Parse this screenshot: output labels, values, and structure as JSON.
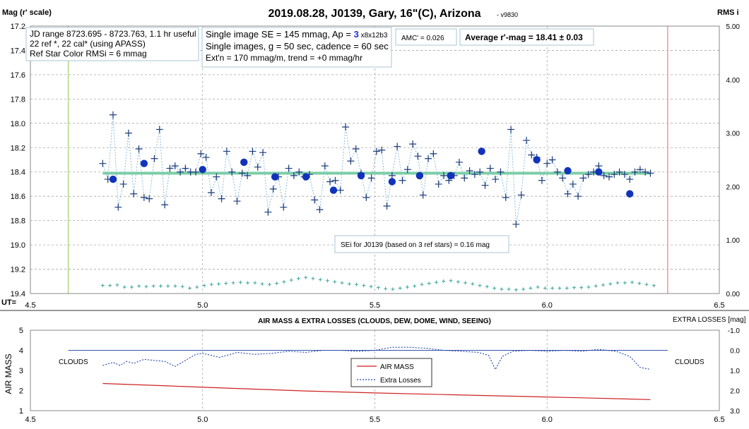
{
  "chart_data": [
    {
      "type": "scatter",
      "title": "2019.08.28, J0139, Gary, 16\"(C), Arizona",
      "version": "- v9830",
      "ylabel_left": "Mag (r' scale)",
      "ylabel_right": "RMS i",
      "xlabel": "UT=",
      "xlim": [
        4.5,
        6.5
      ],
      "ylim_left": [
        17.2,
        19.4
      ],
      "ylim_right": [
        0.0,
        5.0
      ],
      "x_ticks": [
        "4.5",
        "5.0",
        "5.5",
        "6.0",
        "6.5"
      ],
      "y_ticks_left": [
        "17.2",
        "17.4",
        "17.6",
        "17.8",
        "18.0",
        "18.2",
        "18.4",
        "18.6",
        "18.8",
        "19.0",
        "19.2",
        "19.4"
      ],
      "y_ticks_right": [
        "0.00",
        "1.00",
        "2.00",
        "3.00",
        "4.00",
        "5.00"
      ],
      "vertical_lines": [
        {
          "x": 4.61,
          "color": "#b5d98a"
        },
        {
          "x": 6.35,
          "color": "#f0a0a0"
        }
      ],
      "annotations": {
        "box1": [
          "JD range 8723.695 - 8723.763, 1.1 hr useful",
          "22 ref *, 22 cal* (using APASS)",
          "Ref Star Color RMSi = 6 mmag"
        ],
        "box2_line1_prefix": "Single image SE = 145 mmag, Ap = ",
        "box2_ap": "3",
        "box2_line1_suffix": " x8x12b3",
        "box2_line2": "Single images, g = 50 sec, cadence = 60 sec",
        "box2_line3": "Ext'n = 170 mmag/m, trend = +0 mmag/hr",
        "amc": "AMC' = 0.026",
        "average": "Average r'-mag =  18.41 ± 0.03",
        "sei": "SEi for J0139 (based on 3 ref stars) = 0.16 mag"
      },
      "series": [
        {
          "role": "single images",
          "marker": "plus",
          "color": "#1a3a7a",
          "x": [
            4.71,
            4.725,
            4.74,
            4.755,
            4.77,
            4.785,
            4.8,
            4.815,
            4.83,
            4.845,
            4.86,
            4.875,
            4.89,
            4.905,
            4.92,
            4.935,
            4.95,
            4.965,
            4.98,
            4.995,
            5.01,
            5.025,
            5.04,
            5.055,
            5.07,
            5.085,
            5.1,
            5.115,
            5.13,
            5.145,
            5.16,
            5.175,
            5.19,
            5.205,
            5.22,
            5.235,
            5.25,
            5.265,
            5.28,
            5.295,
            5.31,
            5.325,
            5.34,
            5.355,
            5.37,
            5.385,
            5.4,
            5.415,
            5.43,
            5.445,
            5.46,
            5.475,
            5.49,
            5.505,
            5.52,
            5.535,
            5.55,
            5.565,
            5.58,
            5.595,
            5.61,
            5.625,
            5.64,
            5.655,
            5.67,
            5.685,
            5.7,
            5.715,
            5.73,
            5.745,
            5.76,
            5.775,
            5.79,
            5.805,
            5.82,
            5.835,
            5.85,
            5.865,
            5.88,
            5.895,
            5.91,
            5.925,
            5.94,
            5.955,
            5.97,
            5.985,
            6.0,
            6.015,
            6.03,
            6.045,
            6.06,
            6.075,
            6.09,
            6.105,
            6.12,
            6.135,
            6.15,
            6.165,
            6.18,
            6.195,
            6.21,
            6.225,
            6.24,
            6.255,
            6.27,
            6.285,
            6.3
          ],
          "y": [
            18.33,
            18.46,
            17.93,
            18.69,
            18.5,
            18.08,
            18.58,
            18.21,
            18.61,
            18.62,
            18.29,
            18.05,
            18.67,
            18.37,
            18.35,
            18.4,
            18.37,
            18.4,
            18.4,
            18.25,
            18.28,
            18.57,
            18.44,
            18.62,
            18.23,
            18.4,
            18.64,
            18.41,
            18.43,
            18.23,
            18.36,
            18.24,
            18.73,
            18.54,
            18.44,
            18.69,
            18.37,
            18.43,
            18.4,
            18.44,
            18.42,
            18.63,
            18.71,
            18.35,
            18.48,
            18.47,
            18.55,
            18.03,
            18.31,
            18.21,
            18.41,
            18.61,
            18.45,
            18.23,
            18.22,
            18.68,
            18.43,
            18.19,
            18.47,
            18.38,
            18.17,
            18.27,
            18.59,
            18.29,
            18.25,
            18.5,
            18.43,
            18.47,
            18.43,
            18.32,
            18.45,
            18.39,
            18.42,
            18.4,
            18.51,
            18.37,
            18.46,
            18.4,
            18.61,
            18.05,
            18.83,
            18.59,
            18.14,
            18.26,
            18.28,
            18.47,
            18.33,
            18.3,
            18.4,
            18.45,
            18.58,
            18.5,
            18.6,
            18.45,
            18.42,
            18.4,
            18.35,
            18.43,
            18.44,
            18.42,
            18.4,
            18.42,
            18.46,
            18.4,
            18.38,
            18.4,
            18.41
          ]
        },
        {
          "role": "5-point averages",
          "marker": "dot",
          "color": "#1133bb",
          "x": [
            4.74,
            4.83,
            5.0,
            5.12,
            5.21,
            5.3,
            5.38,
            5.46,
            5.55,
            5.63,
            5.72,
            5.81,
            5.97,
            6.06,
            6.15,
            6.24
          ],
          "y": [
            18.46,
            18.33,
            18.38,
            18.32,
            18.44,
            18.44,
            18.55,
            18.43,
            18.48,
            18.43,
            18.43,
            18.23,
            18.3,
            18.39,
            18.4,
            18.58
          ]
        },
        {
          "role": "trend",
          "type": "line",
          "color": "#7ccfa6",
          "x": [
            4.71,
            6.3
          ],
          "y": [
            18.41,
            18.41
          ]
        },
        {
          "role": "RMS i",
          "axis": "right",
          "marker": "small-plus",
          "color": "#3aa59a",
          "y": [
            0.15,
            0.15,
            0.16,
            0.12,
            0.12,
            0.14,
            0.13,
            0.14,
            0.14,
            0.14,
            0.14,
            0.13,
            0.1,
            0.12,
            0.15,
            0.17,
            0.18,
            0.19,
            0.2,
            0.21,
            0.2,
            0.2,
            0.18,
            0.17,
            0.19,
            0.22,
            0.25,
            0.28,
            0.3,
            0.28,
            0.26,
            0.24,
            0.22,
            0.2,
            0.18,
            0.17,
            0.15,
            0.13,
            0.11,
            0.09,
            0.08,
            0.1,
            0.12,
            0.14,
            0.17,
            0.19,
            0.21,
            0.23,
            0.24,
            0.22,
            0.2,
            0.18,
            0.15,
            0.13,
            0.1,
            0.08,
            0.08,
            0.07,
            0.08,
            0.1,
            0.12,
            0.1,
            0.1,
            0.1,
            0.1,
            0.11,
            0.11,
            0.12,
            0.14,
            0.16,
            0.18,
            0.2,
            0.2,
            0.21,
            0.19,
            0.17,
            0.15
          ]
        }
      ]
    },
    {
      "type": "line",
      "title": "AIR MASS & EXTRA LOSSES (CLOUDS, DEW, DOME, WIND, SEEING)",
      "ylabel_left": "AIR MASS",
      "ylabel_right": "EXTRA LOSSES [mag]",
      "xlim": [
        4.5,
        6.5
      ],
      "ylim_left": [
        1,
        5
      ],
      "ylim_right": [
        3.0,
        -1.0
      ],
      "x_ticks": [
        "4.5",
        "5.0",
        "5.5",
        "6.0",
        "6.5"
      ],
      "y_ticks_left": [
        "1",
        "2",
        "3",
        "4",
        "5"
      ],
      "y_ticks_right": [
        "-1.0",
        "0.0",
        "1.0",
        "2.0",
        "3.0"
      ],
      "clouds_left": "CLOUDS",
      "clouds_right": "CLOUDS",
      "legend": [
        "AIR MASS",
        "Extra Losses"
      ],
      "series": [
        {
          "name": "AIR MASS",
          "color": "#cc2222",
          "x": [
            4.71,
            4.9,
            5.1,
            5.3,
            5.5,
            5.7,
            5.9,
            6.1,
            6.3
          ],
          "y": [
            2.35,
            2.23,
            2.1,
            1.98,
            1.88,
            1.8,
            1.72,
            1.64,
            1.55
          ]
        },
        {
          "name": "Extra Losses",
          "color": "#2244aa",
          "x": [
            4.71,
            4.74,
            4.76,
            4.78,
            4.8,
            4.83,
            4.86,
            4.89,
            4.92,
            4.95,
            4.98,
            5.0,
            5.05,
            5.1,
            5.15,
            5.2,
            5.25,
            5.3,
            5.35,
            5.4,
            5.45,
            5.5,
            5.55,
            5.6,
            5.65,
            5.7,
            5.75,
            5.8,
            5.83,
            5.85,
            5.87,
            5.9,
            5.95,
            6.0,
            6.05,
            6.1,
            6.15,
            6.2,
            6.24,
            6.27,
            6.3
          ],
          "y": [
            0.75,
            0.6,
            0.75,
            0.55,
            0.65,
            0.45,
            0.5,
            0.55,
            0.8,
            0.5,
            0.2,
            0.15,
            0.35,
            0.1,
            0.2,
            0.15,
            0.05,
            0.1,
            0.0,
            0.0,
            0.05,
            0.0,
            -0.15,
            -0.15,
            -0.1,
            0.0,
            0.05,
            0.1,
            0.25,
            0.95,
            0.3,
            0.05,
            0.0,
            0.05,
            0.0,
            0.05,
            -0.05,
            0.05,
            0.3,
            0.85,
            0.95
          ]
        },
        {
          "role": "reference line",
          "color": "#3355aa",
          "x": [
            4.61,
            6.35
          ],
          "y": [
            4,
            4
          ]
        }
      ]
    }
  ]
}
